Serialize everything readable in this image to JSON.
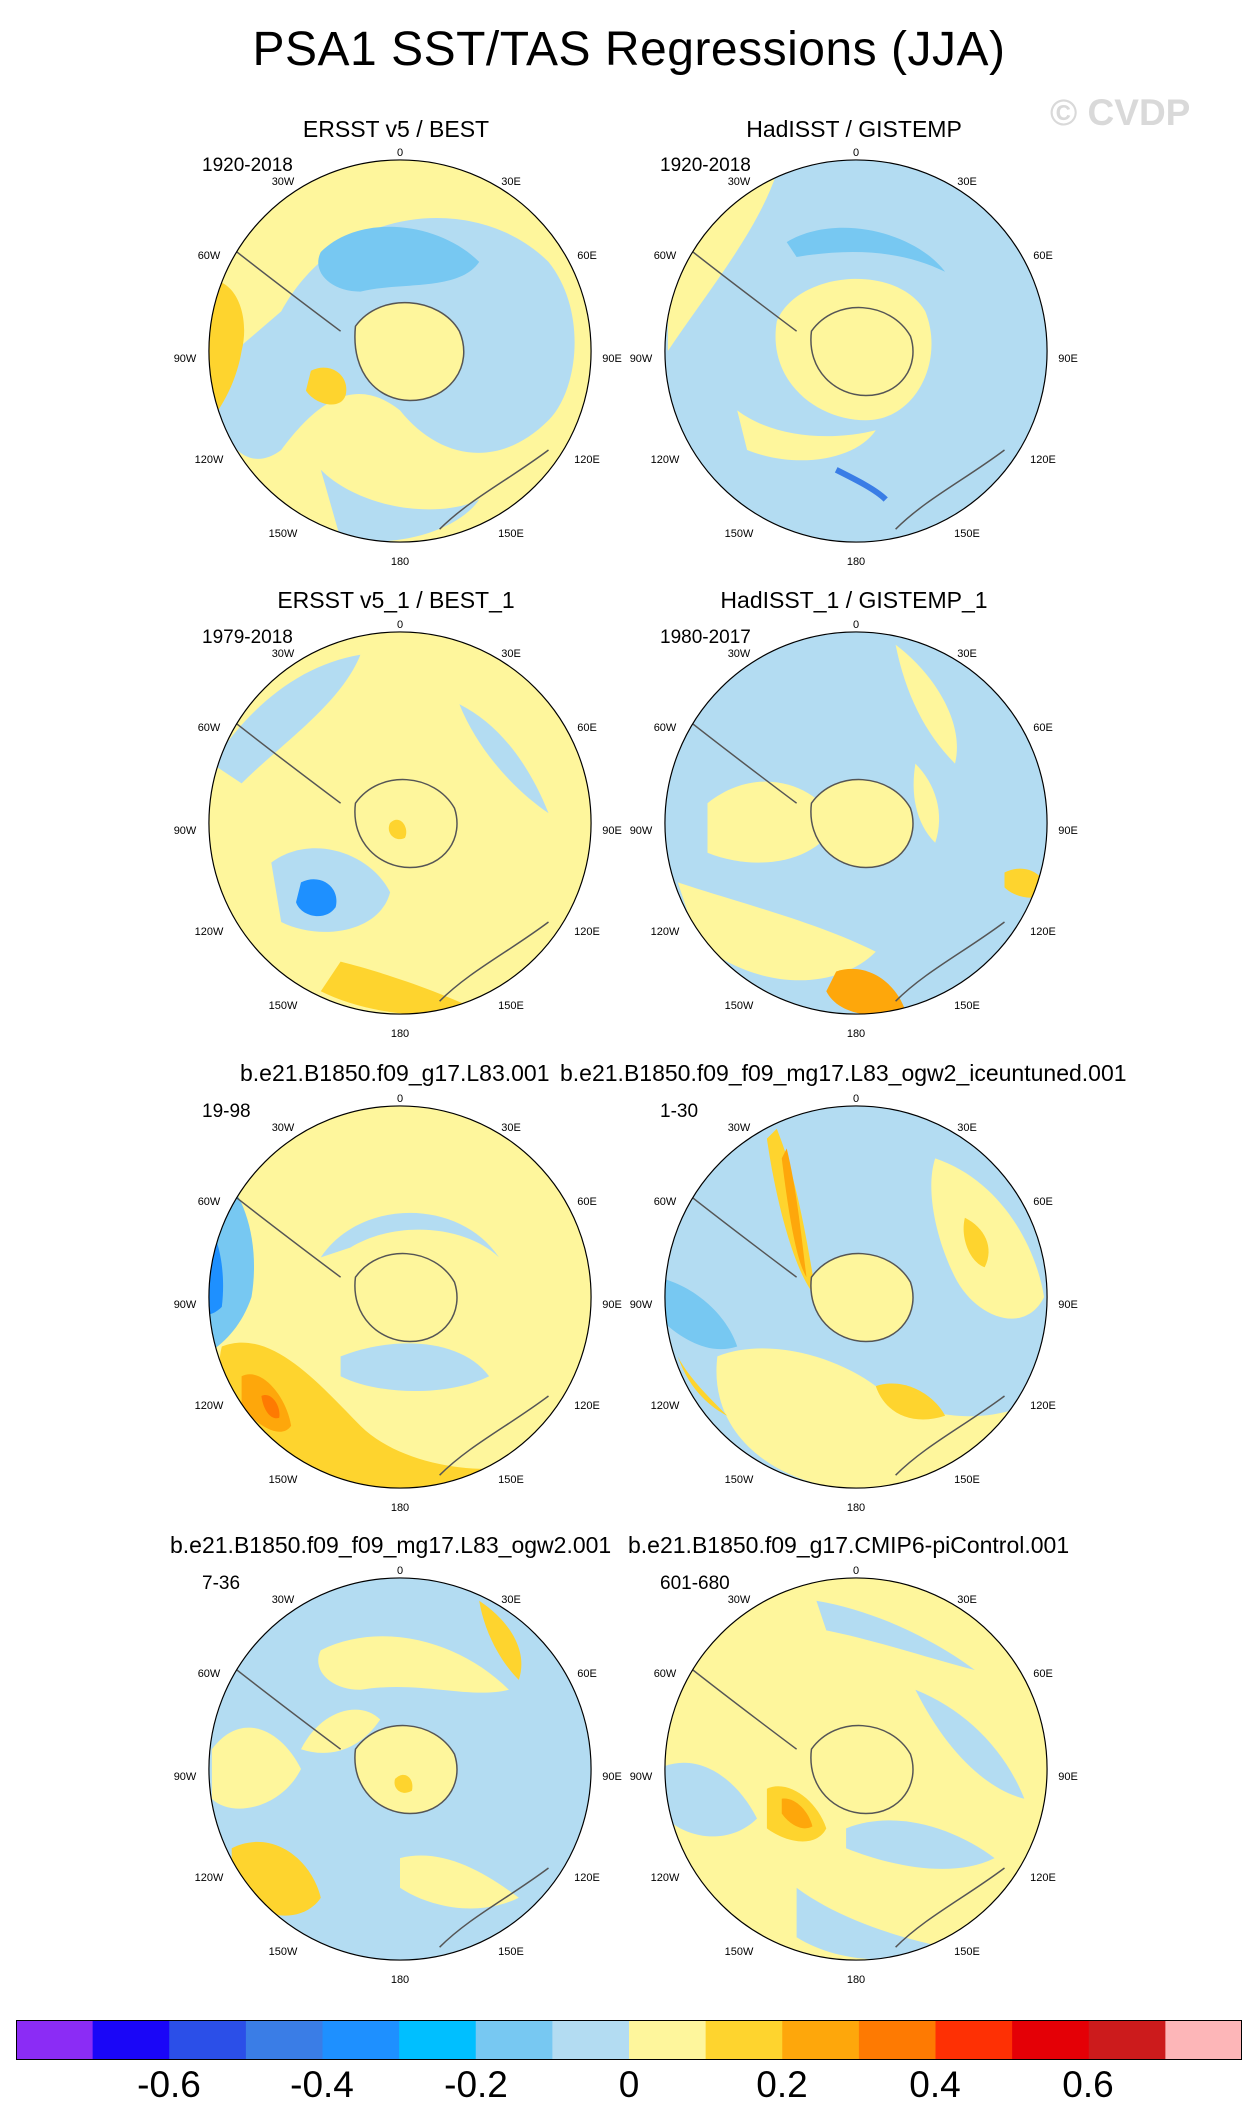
{
  "title": "PSA1 SST/TAS Regressions (JJA)",
  "watermark": "© CVDP",
  "panels": [
    {
      "title": "ERSST v5 / BEST",
      "years": "1920-2018"
    },
    {
      "title": "HadISST / GISTEMP",
      "years": "1920-2018"
    },
    {
      "title": "ERSST v5_1 / BEST_1",
      "years": "1979-2018"
    },
    {
      "title": "HadISST_1 / GISTEMP_1",
      "years": "1980-2017"
    },
    {
      "title": "b.e21.B1850.f09_g17.L83.001",
      "years": "19-98"
    },
    {
      "title": "b.e21.B1850.f09_f09_mg17.L83_ogw2_iceuntuned.001",
      "years": "1-30"
    },
    {
      "title": "b.e21.B1850.f09_f09_mg17.L83_ogw2.001",
      "years": "7-36"
    },
    {
      "title": "b.e21.B1850.f09_g17.CMIP6-piControl.001",
      "years": "601-680"
    }
  ],
  "lon_labels": [
    "0",
    "30E",
    "60E",
    "90E",
    "120E",
    "150E",
    "180",
    "150W",
    "120W",
    "90W",
    "60W",
    "30W"
  ],
  "colorbar": {
    "colors": [
      "#8b2cf5",
      "#1a06f7",
      "#2b4fe8",
      "#3a7de6",
      "#1e90ff",
      "#00bfff",
      "#77c8f2",
      "#b3dcf2",
      "#fef69c",
      "#fed42e",
      "#fea70b",
      "#fe7a02",
      "#fe3004",
      "#e40006",
      "#cc1b1c",
      "#fdb6b8"
    ],
    "tick_labels": [
      "-0.6",
      "-0.4",
      "-0.2",
      "0",
      "0.2",
      "0.4",
      "0.6"
    ]
  }
}
